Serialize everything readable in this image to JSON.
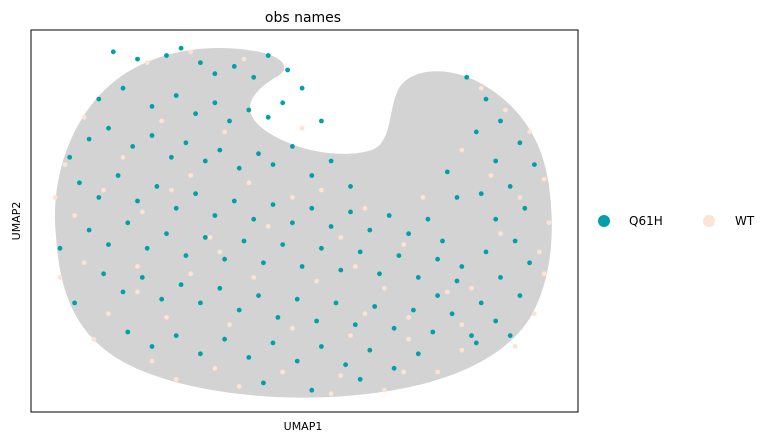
{
  "chart_data": {
    "type": "scatter",
    "title": "obs names",
    "xlabel": "UMAP1",
    "ylabel": "UMAP2",
    "xticks": [],
    "yticks": [],
    "grid": false,
    "legend_placement": "right",
    "legend": [
      {
        "name": "Q61H",
        "color": "#00a0a8"
      },
      {
        "name": "WT",
        "color": "#fde3d4"
      }
    ],
    "background_color": "#d3d3d3",
    "series": [
      {
        "name": "Q61H",
        "color": "#00a0a8",
        "points": [
          [
            -4.1,
            4.9
          ],
          [
            -3.6,
            4.7
          ],
          [
            -3.0,
            4.8
          ],
          [
            -2.7,
            5.0
          ],
          [
            -2.3,
            4.6
          ],
          [
            -2.0,
            4.3
          ],
          [
            -1.6,
            4.5
          ],
          [
            -1.2,
            4.2
          ],
          [
            -0.9,
            4.8
          ],
          [
            -0.5,
            4.4
          ],
          [
            -4.4,
            3.6
          ],
          [
            -3.9,
            3.9
          ],
          [
            -3.3,
            3.4
          ],
          [
            -2.8,
            3.7
          ],
          [
            -2.4,
            3.2
          ],
          [
            -2.0,
            3.5
          ],
          [
            -1.7,
            3.0
          ],
          [
            -1.3,
            3.3
          ],
          [
            -0.9,
            3.1
          ],
          [
            -0.6,
            3.5
          ],
          [
            -4.6,
            2.5
          ],
          [
            -4.2,
            2.8
          ],
          [
            -3.7,
            2.3
          ],
          [
            -3.3,
            2.6
          ],
          [
            -2.9,
            2.0
          ],
          [
            -2.6,
            2.4
          ],
          [
            -2.2,
            1.9
          ],
          [
            -1.9,
            2.2
          ],
          [
            -1.5,
            1.7
          ],
          [
            -1.1,
            2.1
          ],
          [
            -0.8,
            1.8
          ],
          [
            -0.4,
            2.3
          ],
          [
            0.0,
            1.5
          ],
          [
            0.4,
            1.9
          ],
          [
            0.8,
            1.2
          ],
          [
            -4.8,
            1.3
          ],
          [
            -4.4,
            0.9
          ],
          [
            -4.0,
            1.5
          ],
          [
            -3.6,
            0.8
          ],
          [
            -3.2,
            1.2
          ],
          [
            -2.8,
            0.6
          ],
          [
            -2.4,
            1.0
          ],
          [
            -2.0,
            0.4
          ],
          [
            -1.6,
            0.8
          ],
          [
            -1.2,
            0.3
          ],
          [
            -0.8,
            0.7
          ],
          [
            -0.4,
            0.2
          ],
          [
            0.0,
            0.6
          ],
          [
            0.4,
            0.1
          ],
          [
            0.8,
            0.5
          ],
          [
            1.2,
            0.0
          ],
          [
            1.6,
            0.4
          ],
          [
            2.0,
            -0.1
          ],
          [
            2.4,
            0.3
          ],
          [
            -4.6,
            0.0
          ],
          [
            -4.2,
            -0.4
          ],
          [
            -3.8,
            0.2
          ],
          [
            -3.4,
            -0.5
          ],
          [
            -3.0,
            -0.1
          ],
          [
            -2.6,
            -0.7
          ],
          [
            -2.2,
            -0.2
          ],
          [
            -1.8,
            -0.8
          ],
          [
            -1.4,
            -0.3
          ],
          [
            -1.0,
            -0.9
          ],
          [
            -0.6,
            -0.4
          ],
          [
            -0.2,
            -1.0
          ],
          [
            0.2,
            -0.5
          ],
          [
            0.6,
            -1.1
          ],
          [
            1.0,
            -0.6
          ],
          [
            1.4,
            -1.2
          ],
          [
            1.8,
            -0.7
          ],
          [
            2.2,
            -1.3
          ],
          [
            2.6,
            -0.8
          ],
          [
            3.0,
            -1.4
          ],
          [
            -4.3,
            -1.2
          ],
          [
            -3.9,
            -1.7
          ],
          [
            -3.5,
            -1.3
          ],
          [
            -3.1,
            -1.9
          ],
          [
            -2.7,
            -1.5
          ],
          [
            -2.3,
            -2.0
          ],
          [
            -1.9,
            -1.6
          ],
          [
            -1.5,
            -2.2
          ],
          [
            -1.1,
            -1.8
          ],
          [
            -0.7,
            -2.4
          ],
          [
            -0.3,
            -1.9
          ],
          [
            0.1,
            -2.5
          ],
          [
            0.5,
            -2.0
          ],
          [
            0.9,
            -2.6
          ],
          [
            1.3,
            -2.1
          ],
          [
            1.7,
            -2.7
          ],
          [
            2.1,
            -2.2
          ],
          [
            2.5,
            -2.8
          ],
          [
            2.9,
            -2.3
          ],
          [
            3.3,
            -2.9
          ],
          [
            -3.8,
            -2.8
          ],
          [
            -3.3,
            -3.2
          ],
          [
            -2.8,
            -2.9
          ],
          [
            -2.3,
            -3.4
          ],
          [
            -1.8,
            -3.0
          ],
          [
            -1.3,
            -3.5
          ],
          [
            -0.8,
            -3.1
          ],
          [
            -0.3,
            -3.6
          ],
          [
            0.2,
            -3.2
          ],
          [
            0.7,
            -3.7
          ],
          [
            1.2,
            -3.3
          ],
          [
            1.7,
            -3.8
          ],
          [
            2.2,
            -3.4
          ],
          [
            -1.0,
            -4.2
          ],
          [
            0.0,
            -4.4
          ],
          [
            1.0,
            -4.1
          ],
          [
            3.2,
            4.2
          ],
          [
            3.6,
            3.6
          ],
          [
            3.9,
            3.0
          ],
          [
            4.3,
            2.4
          ],
          [
            4.6,
            1.8
          ],
          [
            3.4,
            2.7
          ],
          [
            3.8,
            1.9
          ],
          [
            4.1,
            1.2
          ],
          [
            4.4,
            0.6
          ],
          [
            3.5,
            1.0
          ],
          [
            3.8,
            0.3
          ],
          [
            4.2,
            -0.3
          ],
          [
            4.5,
            -0.9
          ],
          [
            3.6,
            -0.6
          ],
          [
            3.9,
            -1.3
          ],
          [
            4.3,
            -1.8
          ],
          [
            3.5,
            -2.0
          ],
          [
            3.8,
            -2.5
          ],
          [
            4.1,
            -2.9
          ],
          [
            2.8,
            1.6
          ],
          [
            3.0,
            0.9
          ],
          [
            2.7,
            -0.3
          ],
          [
            3.1,
            -1.0
          ],
          [
            2.6,
            -1.8
          ],
          [
            3.4,
            -3.1
          ],
          [
            0.2,
            3.0
          ],
          [
            -0.2,
            3.9
          ],
          [
            -5.2,
            -0.5
          ],
          [
            -5.0,
            2.0
          ],
          [
            -4.9,
            -2.0
          ]
        ]
      },
      {
        "name": "WT",
        "color": "#fde3d4",
        "points": [
          [
            -3.4,
            4.6
          ],
          [
            -2.5,
            4.9
          ],
          [
            -1.4,
            4.7
          ],
          [
            -4.7,
            3.1
          ],
          [
            -3.1,
            3.0
          ],
          [
            -1.8,
            2.7
          ],
          [
            -0.2,
            2.8
          ],
          [
            -5.1,
            1.8
          ],
          [
            -3.9,
            2.0
          ],
          [
            -2.5,
            1.5
          ],
          [
            -1.3,
            1.3
          ],
          [
            0.2,
            1.1
          ],
          [
            -4.9,
            0.4
          ],
          [
            -3.5,
            0.5
          ],
          [
            -2.1,
            -0.2
          ],
          [
            -0.9,
            0.1
          ],
          [
            0.6,
            -0.2
          ],
          [
            1.9,
            -0.4
          ],
          [
            -4.7,
            -0.9
          ],
          [
            -3.6,
            -1.0
          ],
          [
            -2.5,
            -1.2
          ],
          [
            -1.2,
            -1.3
          ],
          [
            0.1,
            -1.4
          ],
          [
            1.5,
            -1.6
          ],
          [
            2.8,
            -1.7
          ],
          [
            -4.2,
            -2.3
          ],
          [
            -3.0,
            -2.4
          ],
          [
            -1.7,
            -2.6
          ],
          [
            -0.4,
            -2.7
          ],
          [
            0.8,
            -2.9
          ],
          [
            2.0,
            -3.0
          ],
          [
            3.1,
            -3.3
          ],
          [
            -3.3,
            -3.6
          ],
          [
            -2.0,
            -3.8
          ],
          [
            -0.6,
            -3.9
          ],
          [
            0.6,
            -4.0
          ],
          [
            1.9,
            -3.9
          ],
          [
            -1.5,
            -4.3
          ],
          [
            0.4,
            -4.5
          ],
          [
            1.5,
            -4.4
          ],
          [
            3.5,
            3.9
          ],
          [
            4.0,
            3.3
          ],
          [
            4.5,
            2.7
          ],
          [
            4.8,
            1.4
          ],
          [
            4.9,
            0.2
          ],
          [
            4.8,
            -1.2
          ],
          [
            4.6,
            -2.3
          ],
          [
            4.2,
            -3.2
          ],
          [
            3.9,
            -0.1
          ],
          [
            3.7,
            1.5
          ],
          [
            3.3,
            -1.6
          ],
          [
            2.3,
            0.9
          ],
          [
            2.0,
            -2.4
          ],
          [
            1.1,
            -2.3
          ],
          [
            -5.3,
            0.9
          ],
          [
            -5.2,
            -1.3
          ],
          [
            -4.5,
            -3.0
          ],
          [
            -2.8,
            -4.1
          ],
          [
            2.6,
            -3.9
          ],
          [
            3.1,
            -2.6
          ],
          [
            -0.4,
            0.9
          ],
          [
            -2.9,
            1.1
          ],
          [
            1.1,
            0.6
          ],
          [
            -1.9,
            -0.6
          ],
          [
            0.9,
            -1.0
          ],
          [
            -3.6,
            -1.7
          ],
          [
            4.7,
            -0.6
          ],
          [
            4.3,
            0.9
          ],
          [
            3.1,
            2.2
          ],
          [
            -4.3,
            1.1
          ]
        ]
      }
    ],
    "xlim": [
      -5.8,
      5.5
    ],
    "ylim": [
      -5.0,
      5.5
    ]
  }
}
